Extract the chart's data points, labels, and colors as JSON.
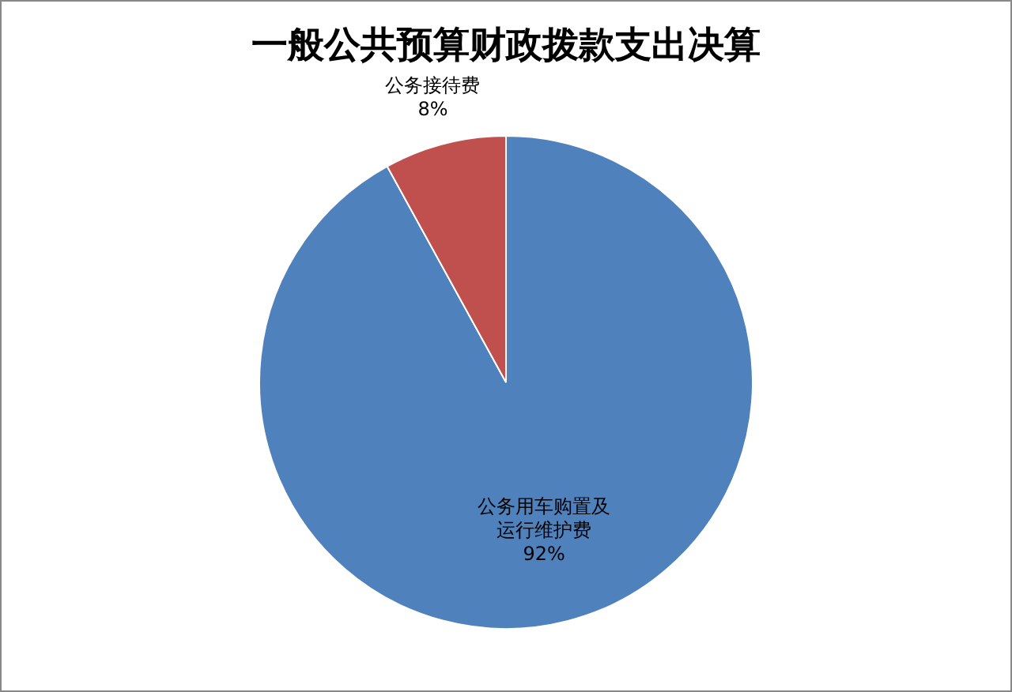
{
  "chart_data": {
    "type": "pie",
    "title": "一般公共预算财政拨款支出决算",
    "categories": [
      "公务用车购置及运行维护费",
      "公务接待费"
    ],
    "values": [
      92,
      8
    ],
    "colors": [
      "#4f81bd",
      "#c0504d"
    ],
    "value_labels": [
      "92%",
      "8%"
    ],
    "legend": false
  }
}
